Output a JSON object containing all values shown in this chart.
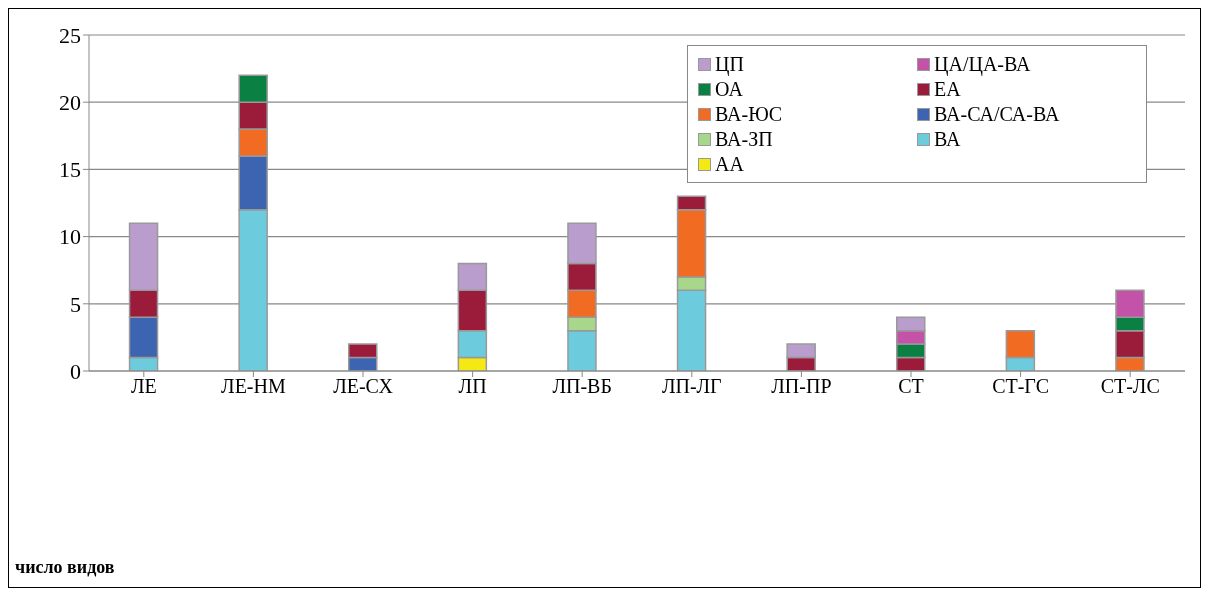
{
  "chart_data": {
    "type": "bar",
    "stacked": true,
    "annotations": [
      "число видов"
    ],
    "categories": [
      "ЛЕ",
      "ЛЕ-НМ",
      "ЛЕ-СХ",
      "ЛП",
      "ЛП-ВБ",
      "ЛП-ЛГ",
      "ЛП-ПР",
      "СТ",
      "СТ-ГС",
      "СТ-ЛС"
    ],
    "series": [
      {
        "name": "АА",
        "color": "#f5e914",
        "values": [
          null,
          null,
          null,
          1,
          null,
          null,
          null,
          null,
          null,
          null
        ]
      },
      {
        "name": "ВА",
        "color": "#6ccbdc",
        "values": [
          1,
          12,
          null,
          2,
          3,
          6,
          null,
          null,
          1,
          null
        ]
      },
      {
        "name": "ВА-ЗП",
        "color": "#a7d78b",
        "values": [
          null,
          null,
          null,
          null,
          1,
          1,
          null,
          null,
          null,
          null
        ]
      },
      {
        "name": "ВА-СА/СА-ВА",
        "color": "#3d64b0",
        "values": [
          3,
          4,
          1,
          null,
          null,
          null,
          null,
          null,
          null,
          null
        ]
      },
      {
        "name": "ВА-ЮС",
        "color": "#f26b22",
        "values": [
          null,
          2,
          null,
          null,
          2,
          5,
          null,
          null,
          2,
          1
        ]
      },
      {
        "name": "ЕА",
        "color": "#9b1b3b",
        "values": [
          2,
          2,
          1,
          3,
          2,
          1,
          1,
          1,
          null,
          2
        ]
      },
      {
        "name": "ОА",
        "color": "#0b8043",
        "values": [
          null,
          2,
          null,
          null,
          null,
          null,
          null,
          1,
          null,
          1
        ]
      },
      {
        "name": "ЦА/ЦА-ВА",
        "color": "#c452a8",
        "values": [
          null,
          null,
          null,
          null,
          null,
          null,
          null,
          1,
          null,
          2
        ]
      },
      {
        "name": "ЦП",
        "color": "#b99dcc",
        "values": [
          5,
          null,
          null,
          2,
          3,
          null,
          1,
          1,
          null,
          null
        ]
      }
    ],
    "ylim": [
      0,
      25
    ],
    "yticks": [
      0,
      5,
      10,
      15,
      20,
      25
    ],
    "grid": "y",
    "legend": "top right"
  }
}
